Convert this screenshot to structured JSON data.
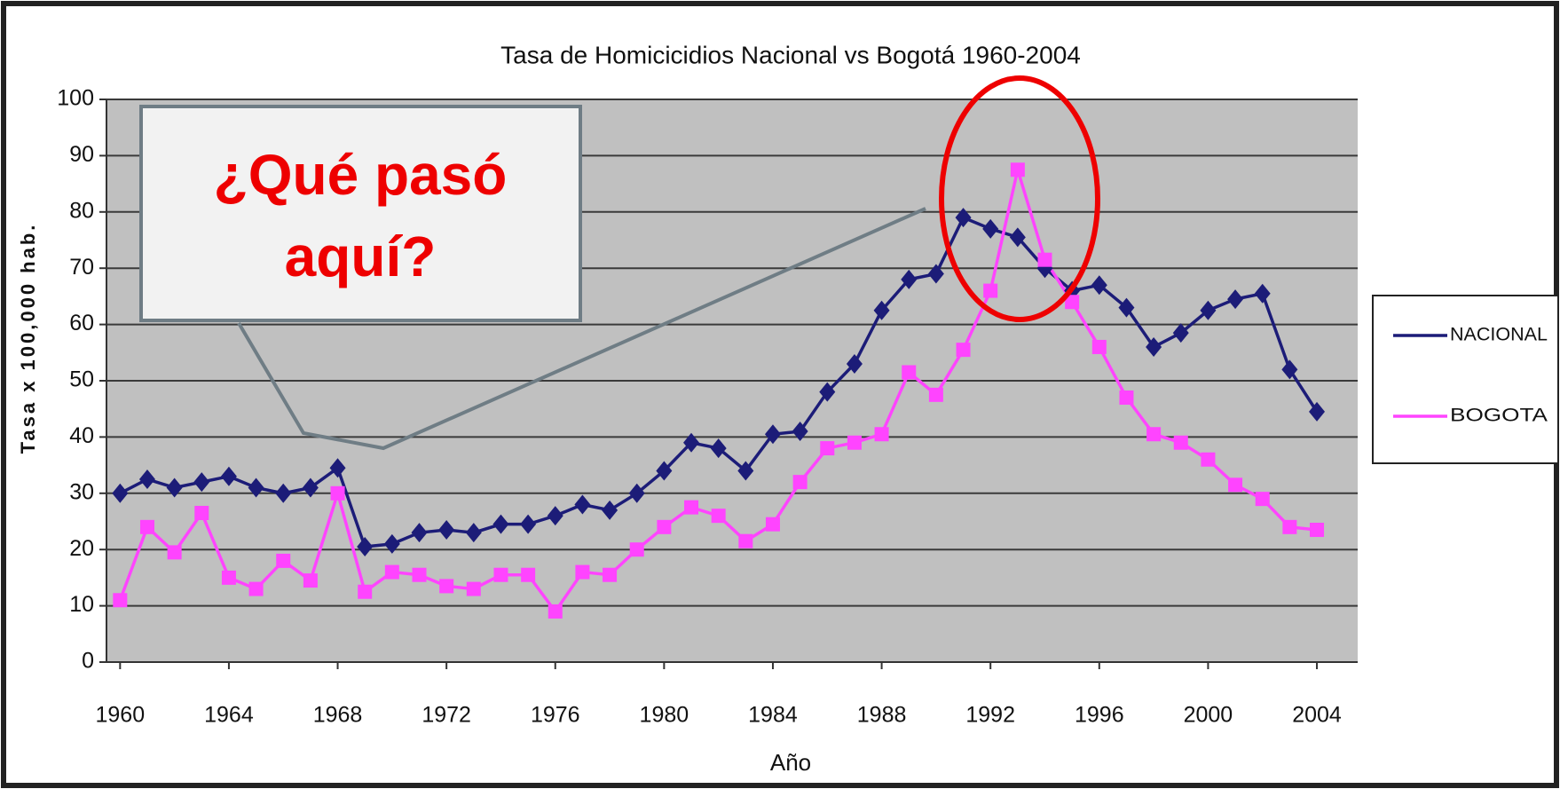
{
  "chart_data": {
    "type": "line",
    "title": "Tasa de Homicicidios Nacional vs Bogotá 1960-2004",
    "x_label": "Año",
    "y_label": "Tasa x 100,000 hab.",
    "annotation": "¿Qué pasó aquí?",
    "x": [
      1960,
      1961,
      1962,
      1963,
      1964,
      1965,
      1966,
      1967,
      1968,
      1969,
      1970,
      1971,
      1972,
      1973,
      1974,
      1975,
      1976,
      1977,
      1978,
      1979,
      1980,
      1981,
      1982,
      1983,
      1984,
      1985,
      1986,
      1987,
      1988,
      1989,
      1990,
      1991,
      1992,
      1993,
      1994,
      1995,
      1996,
      1997,
      1998,
      1999,
      2000,
      2001,
      2002,
      2003,
      2004
    ],
    "series": [
      {
        "name": "NACIONAL",
        "color": "#1c1c78",
        "marker": "diamond",
        "values": [
          30,
          32.5,
          31,
          32,
          33,
          31,
          30,
          31,
          34.5,
          20.5,
          21,
          23,
          23.5,
          23,
          24.5,
          24.5,
          26,
          28,
          27,
          30,
          34,
          39,
          38,
          34,
          40.5,
          41,
          48,
          53,
          62.5,
          68,
          69,
          79,
          77,
          75.5,
          70,
          66,
          67,
          63,
          56,
          58.5,
          62.5,
          64.5,
          65.5,
          52,
          44.5
        ]
      },
      {
        "name": "BOGOTA",
        "color": "#ff44ff",
        "marker": "square",
        "values": [
          11,
          24,
          19.5,
          26.5,
          15,
          13,
          18,
          14.5,
          30,
          12.5,
          16,
          15.5,
          13.5,
          13,
          15.5,
          15.5,
          9,
          16,
          15.5,
          20,
          24,
          27.5,
          26,
          21.5,
          24.5,
          32,
          38,
          39,
          40.5,
          51.5,
          47.5,
          55.5,
          66,
          87.5,
          71.5,
          64,
          56,
          47,
          40.5,
          39,
          36,
          31.5,
          29,
          24,
          23.5
        ]
      }
    ],
    "xlim": [
      1959.5,
      2005.5
    ],
    "xticks": [
      1960,
      1964,
      1968,
      1972,
      1976,
      1980,
      1984,
      1988,
      1992,
      1996,
      2000,
      2004
    ],
    "ylim": [
      0,
      100
    ],
    "yticks": [
      0,
      10,
      20,
      30,
      40,
      50,
      60,
      70,
      80,
      90,
      100
    ],
    "grid": true,
    "legend": "right"
  }
}
